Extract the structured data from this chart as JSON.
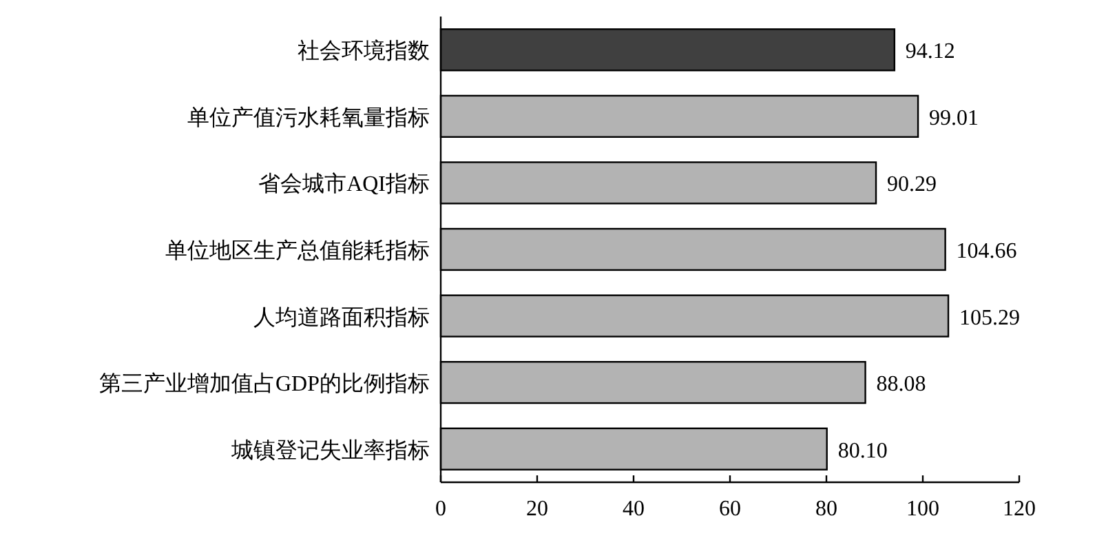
{
  "chart_data": {
    "type": "bar",
    "orientation": "horizontal",
    "categories": [
      "社会环境指数",
      "单位产值污水耗氧量指标",
      "省会城市AQI指标",
      "单位地区生产总值能耗指标",
      "人均道路面积指标",
      "第三产业增加值占GDP的比例指标",
      "城镇登记失业率指标"
    ],
    "values": [
      94.12,
      99.01,
      90.29,
      104.66,
      105.29,
      88.08,
      80.1
    ],
    "value_labels": [
      "94.12",
      "99.01",
      "90.29",
      "104.66",
      "105.29",
      "88.08",
      "80.10"
    ],
    "colors": [
      "#404040",
      "#b3b3b3",
      "#b3b3b3",
      "#b3b3b3",
      "#b3b3b3",
      "#b3b3b3",
      "#b3b3b3"
    ],
    "xlim": [
      0,
      120
    ],
    "xticks": [
      0,
      20,
      40,
      60,
      80,
      100,
      120
    ]
  }
}
